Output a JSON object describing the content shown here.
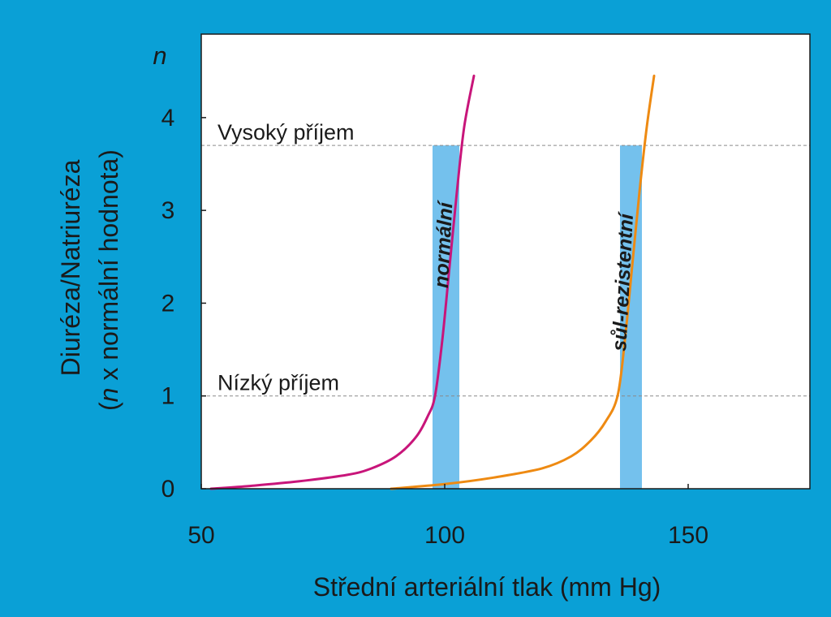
{
  "colors": {
    "background": "#0aa0d6",
    "plot_area": "#ffffff",
    "band": "#74c1ed",
    "guide_line": "#8a8a8a"
  },
  "chart_data": {
    "type": "line",
    "xlabel": "Střední arteriální tlak (mm Hg)",
    "ylabel_line1": "Diuréza/Natriuréza",
    "ylabel_line2_italic": "n",
    "ylabel_line2_rest": " x normální hodnota)",
    "ylabel_line2_open": "(",
    "y_axis_unit": "n",
    "xlim": [
      50,
      175
    ],
    "ylim": [
      0,
      4.9
    ],
    "x_ticks": [
      50,
      100,
      150
    ],
    "x_tick_labels": [
      "50",
      "100",
      "150"
    ],
    "y_ticks": [
      0,
      1,
      2,
      3,
      4
    ],
    "y_tick_labels": [
      "0",
      "1",
      "2",
      "3",
      "4"
    ],
    "grid": false,
    "reference_lines": [
      {
        "label": "Vysoký příjem",
        "y": 3.7
      },
      {
        "label": "Nízký příjem",
        "y": 1.0
      }
    ],
    "bands": [
      {
        "x": [
          97.5,
          103
        ],
        "y": [
          0,
          3.7
        ]
      },
      {
        "x": [
          136,
          140.5
        ],
        "y": [
          0,
          3.7
        ]
      }
    ],
    "series": [
      {
        "name": "normální",
        "color": "#c8157a",
        "points": [
          [
            52,
            0
          ],
          [
            60,
            0.03
          ],
          [
            70,
            0.08
          ],
          [
            80,
            0.15
          ],
          [
            85,
            0.22
          ],
          [
            90,
            0.35
          ],
          [
            94,
            0.55
          ],
          [
            96.5,
            0.78
          ],
          [
            98,
            1.0
          ],
          [
            99.5,
            1.6
          ],
          [
            101,
            2.4
          ],
          [
            102.5,
            3.2
          ],
          [
            104,
            3.9
          ],
          [
            106,
            4.45
          ]
        ]
      },
      {
        "name": "sůl-rezistentní",
        "color": "#ee8a12",
        "points": [
          [
            89,
            0
          ],
          [
            100,
            0.05
          ],
          [
            110,
            0.12
          ],
          [
            120,
            0.22
          ],
          [
            126,
            0.35
          ],
          [
            130,
            0.52
          ],
          [
            133,
            0.72
          ],
          [
            135.5,
            1.0
          ],
          [
            137,
            1.6
          ],
          [
            138.5,
            2.4
          ],
          [
            140,
            3.2
          ],
          [
            141.5,
            3.9
          ],
          [
            143,
            4.45
          ]
        ]
      }
    ]
  }
}
